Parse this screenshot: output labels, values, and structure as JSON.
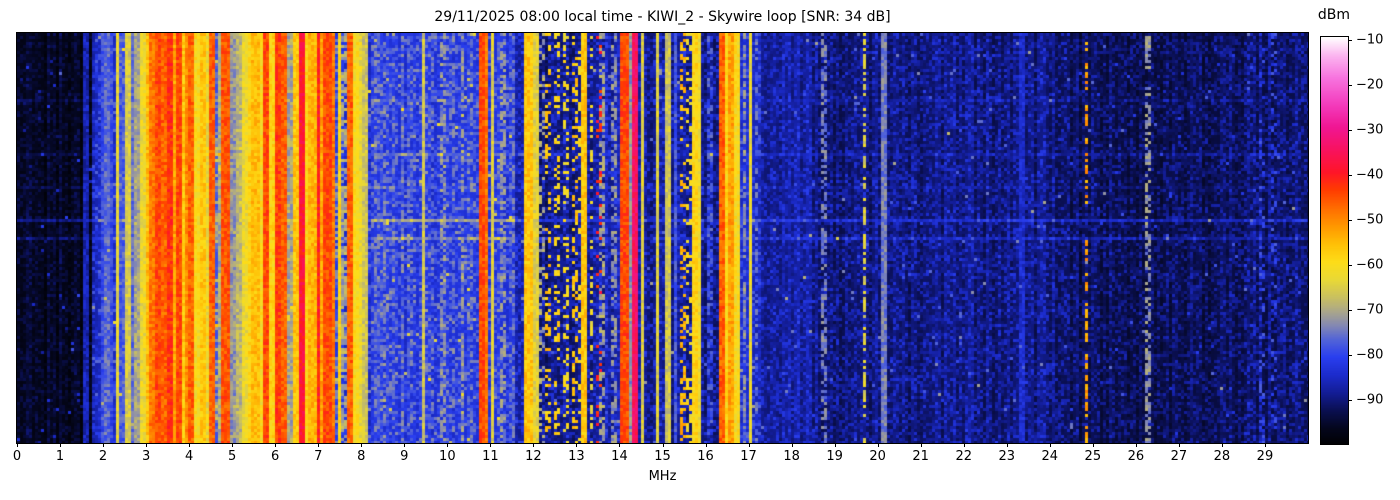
{
  "chart_data": {
    "type": "heatmap",
    "subtype": "rf-spectrogram-waterfall",
    "title": "29/11/2025 08:00 local time - KIWI_2 - Skywire loop [SNR: 34 dB]",
    "xlabel": "MHz",
    "x_range_mhz": [
      0,
      30
    ],
    "x_ticks": [
      0,
      1,
      2,
      3,
      4,
      5,
      6,
      7,
      8,
      9,
      10,
      11,
      12,
      13,
      14,
      15,
      16,
      17,
      18,
      19,
      20,
      21,
      22,
      23,
      24,
      25,
      26,
      27,
      28,
      29
    ],
    "y_axis": "time (no labels shown)",
    "grid": false,
    "colorbar": {
      "label": "dBm",
      "ticks": [
        {
          "value": -10,
          "label": "−10"
        },
        {
          "value": -20,
          "label": "−20"
        },
        {
          "value": -30,
          "label": "−30"
        },
        {
          "value": -40,
          "label": "−40"
        },
        {
          "value": -50,
          "label": "−50"
        },
        {
          "value": -60,
          "label": "−60"
        },
        {
          "value": -70,
          "label": "−70"
        },
        {
          "value": -80,
          "label": "−80"
        },
        {
          "value": -90,
          "label": "−90"
        }
      ],
      "domain_top_dbm": -9,
      "domain_bottom_dbm": -99.5,
      "stops": [
        [
          -100,
          "#000000"
        ],
        [
          -96,
          "#04061c"
        ],
        [
          -92,
          "#0a0f50"
        ],
        [
          -88,
          "#131d96"
        ],
        [
          -84,
          "#1c2ccd"
        ],
        [
          -80,
          "#2a3fef"
        ],
        [
          -76,
          "#5566d6"
        ],
        [
          -73,
          "#8589b2"
        ],
        [
          -70,
          "#aaa68b"
        ],
        [
          -67,
          "#c8bf62"
        ],
        [
          -63,
          "#e8d837"
        ],
        [
          -59,
          "#fddd19"
        ],
        [
          -55,
          "#ffc107"
        ],
        [
          -51,
          "#ff9800"
        ],
        [
          -47,
          "#ff6d00"
        ],
        [
          -43,
          "#ff3d00"
        ],
        [
          -39,
          "#ff1528"
        ],
        [
          -34,
          "#f8125f"
        ],
        [
          -29,
          "#f01693"
        ],
        [
          -24,
          "#f33bbc"
        ],
        [
          -18,
          "#f774df"
        ],
        [
          -13,
          "#fbb5f0"
        ],
        [
          -9,
          "#ffffff"
        ]
      ]
    },
    "noise_regions": [
      [
        1.75,
        -97,
        5,
        0
      ],
      [
        2.9,
        -87,
        11,
        0
      ],
      [
        4.9,
        -80,
        14,
        0
      ],
      [
        8.2,
        -84,
        13,
        0
      ],
      [
        11.6,
        -83,
        10,
        1
      ],
      [
        12.15,
        -87,
        10,
        0
      ],
      [
        13.4,
        -91,
        9,
        0
      ],
      [
        14.55,
        -88,
        9,
        0
      ],
      [
        16.3,
        -90,
        9,
        0
      ],
      [
        17.3,
        -85,
        10,
        0
      ],
      [
        18.5,
        -89,
        8,
        0
      ],
      [
        24.5,
        -91,
        8,
        0
      ],
      [
        28.5,
        -93,
        7,
        0
      ],
      [
        30.01,
        -92,
        8,
        0
      ]
    ],
    "signals": [
      [
        1.6,
        0.02,
        -86,
        "solid"
      ],
      [
        2.0,
        0.02,
        -79,
        "solid"
      ],
      [
        2.1,
        0.02,
        -76,
        "solid"
      ],
      [
        2.21,
        0.02,
        -79,
        "solid"
      ],
      [
        2.33,
        0.03,
        -63,
        "solid"
      ],
      [
        2.45,
        0.02,
        -77,
        "solid"
      ],
      [
        2.56,
        0.03,
        -65,
        "solid"
      ],
      [
        2.68,
        0.02,
        -75,
        "solid"
      ],
      [
        2.8,
        0.03,
        -70,
        "solid"
      ],
      [
        2.95,
        0.03,
        -62,
        "solid"
      ],
      [
        3.05,
        0.03,
        -55,
        "solid"
      ],
      [
        3.15,
        0.03,
        -48,
        "solid"
      ],
      [
        3.25,
        0.04,
        -44,
        "solid"
      ],
      [
        3.35,
        0.03,
        -57,
        "solid"
      ],
      [
        3.45,
        0.04,
        -46,
        "solid"
      ],
      [
        3.55,
        0.04,
        -42,
        "solid"
      ],
      [
        3.65,
        0.03,
        -52,
        "solid"
      ],
      [
        3.76,
        0.04,
        -44,
        "solid"
      ],
      [
        3.86,
        0.03,
        -56,
        "solid"
      ],
      [
        3.96,
        0.03,
        -50,
        "solid"
      ],
      [
        4.06,
        0.04,
        -46,
        "solid"
      ],
      [
        4.17,
        0.03,
        -60,
        "solid"
      ],
      [
        4.3,
        0.04,
        -56,
        "solid"
      ],
      [
        4.44,
        0.03,
        -62,
        "solid"
      ],
      [
        4.56,
        0.04,
        -46,
        "solid"
      ],
      [
        4.7,
        0.03,
        -70,
        "solid"
      ],
      [
        4.85,
        0.05,
        -45,
        "solid"
      ],
      [
        5.0,
        0.03,
        -72,
        "solid"
      ],
      [
        5.15,
        0.03,
        -68,
        "solid"
      ],
      [
        5.3,
        0.04,
        -62,
        "solid"
      ],
      [
        5.45,
        0.05,
        -58,
        "solid"
      ],
      [
        5.56,
        0.06,
        -55,
        "solid"
      ],
      [
        5.66,
        0.03,
        -60,
        "solid"
      ],
      [
        5.76,
        0.04,
        -44,
        "solid"
      ],
      [
        5.9,
        0.04,
        -58,
        "solid"
      ],
      [
        6.0,
        0.03,
        -62,
        "solid"
      ],
      [
        6.08,
        0.05,
        -43,
        "solid"
      ],
      [
        6.2,
        0.04,
        -46,
        "solid"
      ],
      [
        6.34,
        0.03,
        -70,
        "solid"
      ],
      [
        6.5,
        0.04,
        -56,
        "solid"
      ],
      [
        6.62,
        0.03,
        -38,
        "solid"
      ],
      [
        6.74,
        0.04,
        -58,
        "solid"
      ],
      [
        6.87,
        0.04,
        -54,
        "solid"
      ],
      [
        7.0,
        0.03,
        -40,
        "solid"
      ],
      [
        7.1,
        0.03,
        -52,
        "solid"
      ],
      [
        7.21,
        0.05,
        -44,
        "solid"
      ],
      [
        7.34,
        0.04,
        -48,
        "solid"
      ],
      [
        7.49,
        0.03,
        -58,
        "solid"
      ],
      [
        7.62,
        0.03,
        -70,
        "dashed"
      ],
      [
        7.72,
        0.03,
        -46,
        "solid"
      ],
      [
        7.85,
        0.03,
        -60,
        "solid"
      ],
      [
        7.97,
        0.03,
        -62,
        "solid"
      ],
      [
        8.1,
        0.03,
        -66,
        "solid"
      ],
      [
        8.35,
        0.02,
        -76,
        "dashed"
      ],
      [
        8.55,
        0.02,
        -74,
        "dashed"
      ],
      [
        8.75,
        0.02,
        -76,
        "dashed"
      ],
      [
        8.95,
        0.02,
        -74,
        "dashed"
      ],
      [
        9.15,
        0.02,
        -76,
        "dashed"
      ],
      [
        9.45,
        0.02,
        -66,
        "solid"
      ],
      [
        9.65,
        0.02,
        -76,
        "dashed"
      ],
      [
        9.9,
        0.02,
        -72,
        "dashed"
      ],
      [
        10.15,
        0.02,
        -75,
        "dashed"
      ],
      [
        10.35,
        0.02,
        -72,
        "dashed"
      ],
      [
        10.55,
        0.02,
        -74,
        "dashed"
      ],
      [
        10.79,
        0.04,
        -44,
        "solid"
      ],
      [
        10.89,
        0.03,
        -48,
        "solid"
      ],
      [
        11.05,
        0.02,
        -64,
        "solid"
      ],
      [
        11.3,
        0.02,
        -72,
        "dashed"
      ],
      [
        11.55,
        0.02,
        -75,
        "dashed"
      ],
      [
        11.89,
        0.05,
        -56,
        "solid"
      ],
      [
        12.05,
        0.02,
        -64,
        "solid"
      ],
      [
        12.21,
        0.02,
        -70,
        "dotted"
      ],
      [
        12.36,
        0.03,
        -56,
        "dotted"
      ],
      [
        12.56,
        0.03,
        -58,
        "dotted"
      ],
      [
        12.76,
        0.03,
        -60,
        "dotted"
      ],
      [
        12.95,
        0.03,
        -56,
        "dotted"
      ],
      [
        13.1,
        0.03,
        -60,
        "dotted"
      ],
      [
        13.18,
        0.04,
        -56,
        "solid"
      ],
      [
        13.35,
        0.03,
        -62,
        "dotted"
      ],
      [
        13.5,
        0.03,
        -40,
        "sparse"
      ],
      [
        13.6,
        0.02,
        -70,
        "dashed"
      ],
      [
        13.85,
        0.03,
        -72,
        "dashed"
      ],
      [
        14.12,
        0.04,
        -44,
        "solid"
      ],
      [
        14.24,
        0.03,
        -72,
        "solid"
      ],
      [
        14.35,
        0.03,
        -34,
        "solid"
      ],
      [
        14.52,
        0.02,
        -64,
        "solid"
      ],
      [
        14.9,
        0.02,
        -64,
        "solid"
      ],
      [
        15.13,
        0.02,
        -66,
        "solid"
      ],
      [
        15.3,
        0.02,
        -78,
        "solid"
      ],
      [
        15.45,
        0.03,
        -54,
        "dotted"
      ],
      [
        15.6,
        0.03,
        -60,
        "dotted"
      ],
      [
        15.75,
        0.03,
        -58,
        "solid"
      ],
      [
        15.85,
        0.02,
        -62,
        "solid"
      ],
      [
        16.1,
        0.02,
        -78,
        "dashed"
      ],
      [
        16.4,
        0.03,
        -46,
        "solid"
      ],
      [
        16.52,
        0.08,
        -58,
        "solid"
      ],
      [
        16.62,
        0.04,
        -52,
        "solid"
      ],
      [
        16.72,
        0.03,
        -60,
        "solid"
      ],
      [
        16.9,
        0.02,
        -72,
        "dashed"
      ],
      [
        17.05,
        0.02,
        -62,
        "solid"
      ],
      [
        17.2,
        0.02,
        -76,
        "dashed"
      ],
      [
        18.75,
        0.02,
        -74,
        "dashed"
      ],
      [
        19.7,
        0.03,
        -64,
        "dashed"
      ],
      [
        20.15,
        0.02,
        -74,
        "solid"
      ],
      [
        23.35,
        0.03,
        -84,
        "solid"
      ],
      [
        24.85,
        0.03,
        -52,
        "dashed"
      ],
      [
        26.3,
        0.02,
        -72,
        "dashed"
      ],
      [
        28.95,
        0.03,
        -80,
        "dotted"
      ],
      [
        29.2,
        0.03,
        -80,
        "dotted"
      ]
    ]
  }
}
